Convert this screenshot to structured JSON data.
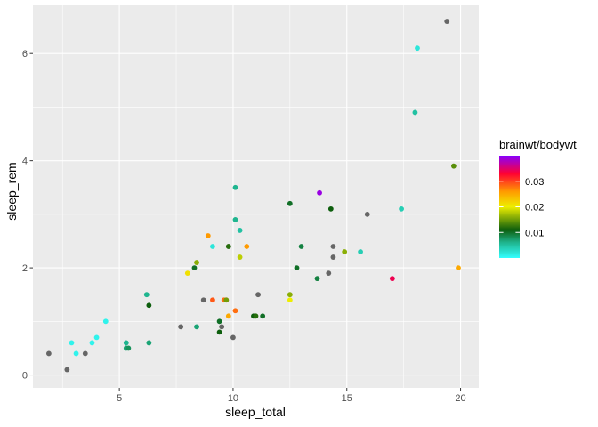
{
  "chart_data": {
    "type": "scatter",
    "xlabel": "sleep_total",
    "ylabel": "sleep_rem",
    "xlim": [
      1.2,
      20.8
    ],
    "ylim": [
      -0.24,
      6.9
    ],
    "x_ticks": [
      {
        "value": 5,
        "label": "5"
      },
      {
        "value": 10,
        "label": "10"
      },
      {
        "value": 15,
        "label": "15"
      },
      {
        "value": 20,
        "label": "20"
      }
    ],
    "y_ticks": [
      {
        "value": 0,
        "label": "0"
      },
      {
        "value": 2,
        "label": "2"
      },
      {
        "value": 4,
        "label": "4"
      },
      {
        "value": 6,
        "label": "6"
      }
    ],
    "grid": true,
    "legend": {
      "title": "brainwt/bodywt",
      "placement": "right",
      "range": [
        0.0,
        0.04
      ],
      "stops": [
        {
          "value": 0.0,
          "color": "#33ffff"
        },
        {
          "value": 0.006,
          "color": "#1fb58f"
        },
        {
          "value": 0.011,
          "color": "#0d5e0d"
        },
        {
          "value": 0.02,
          "color": "#eeee00"
        },
        {
          "value": 0.026,
          "color": "#ff9a00"
        },
        {
          "value": 0.033,
          "color": "#ff0033"
        },
        {
          "value": 0.04,
          "color": "#8800ff"
        }
      ],
      "ticks": [
        {
          "value": 0.01,
          "label": "0.01"
        },
        {
          "value": 0.02,
          "label": "0.02"
        },
        {
          "value": 0.03,
          "label": "0.03"
        }
      ]
    },
    "na_color": "#666666",
    "points": [
      {
        "x": 1.9,
        "y": 0.4,
        "c": null
      },
      {
        "x": 2.7,
        "y": 0.1,
        "c": null
      },
      {
        "x": 2.9,
        "y": 0.6,
        "c": 0.001
      },
      {
        "x": 3.1,
        "y": 0.4,
        "c": 0.001
      },
      {
        "x": 3.5,
        "y": 0.4,
        "c": null
      },
      {
        "x": 3.8,
        "y": 0.6,
        "c": 0.001
      },
      {
        "x": 4.0,
        "y": 0.7,
        "c": 0.001
      },
      {
        "x": 4.4,
        "y": 1.0,
        "c": 0.001
      },
      {
        "x": 5.3,
        "y": 0.6,
        "c": 0.006
      },
      {
        "x": 5.3,
        "y": 0.5,
        "c": 0.007
      },
      {
        "x": 5.4,
        "y": 0.5,
        "c": 0.008
      },
      {
        "x": 6.2,
        "y": 1.5,
        "c": 0.006
      },
      {
        "x": 6.3,
        "y": 1.3,
        "c": 0.011
      },
      {
        "x": 6.3,
        "y": 0.6,
        "c": 0.007
      },
      {
        "x": 7.7,
        "y": 0.9,
        "c": null
      },
      {
        "x": 8.0,
        "y": 1.9,
        "c": 0.021
      },
      {
        "x": 8.3,
        "y": 2.0,
        "c": 0.01
      },
      {
        "x": 8.4,
        "y": 2.1,
        "c": 0.016
      },
      {
        "x": 8.4,
        "y": 0.9,
        "c": 0.007
      },
      {
        "x": 8.7,
        "y": 1.4,
        "c": null
      },
      {
        "x": 8.9,
        "y": 2.6,
        "c": 0.026
      },
      {
        "x": 9.1,
        "y": 2.4,
        "c": 0.002
      },
      {
        "x": 9.1,
        "y": 1.4,
        "c": 0.029
      },
      {
        "x": 9.4,
        "y": 1.0,
        "c": 0.01
      },
      {
        "x": 9.4,
        "y": 0.8,
        "c": 0.011
      },
      {
        "x": 9.5,
        "y": 0.9,
        "c": null
      },
      {
        "x": 9.6,
        "y": 1.4,
        "c": 0.028
      },
      {
        "x": 9.7,
        "y": 1.4,
        "c": 0.03
      },
      {
        "x": 9.7,
        "y": 1.4,
        "c": 0.015
      },
      {
        "x": 9.8,
        "y": 2.4,
        "c": null
      },
      {
        "x": 9.8,
        "y": 2.4,
        "c": 0.012
      },
      {
        "x": 9.8,
        "y": 1.1,
        "c": 0.025
      },
      {
        "x": 10.0,
        "y": 0.7,
        "c": null
      },
      {
        "x": 10.1,
        "y": 3.5,
        "c": 0.006
      },
      {
        "x": 10.1,
        "y": 2.9,
        "c": 0.006
      },
      {
        "x": 10.1,
        "y": 1.2,
        "c": 0.028
      },
      {
        "x": 10.3,
        "y": 2.7,
        "c": 0.005
      },
      {
        "x": 10.3,
        "y": 2.2,
        "c": 0.018
      },
      {
        "x": 10.6,
        "y": 2.4,
        "c": 0.026
      },
      {
        "x": 10.9,
        "y": 1.1,
        "c": 0.011
      },
      {
        "x": 11.0,
        "y": 1.1,
        "c": 0.012
      },
      {
        "x": 11.1,
        "y": 1.5,
        "c": null
      },
      {
        "x": 11.3,
        "y": 1.1,
        "c": 0.01
      },
      {
        "x": 12.5,
        "y": 3.2,
        "c": 0.01
      },
      {
        "x": 12.5,
        "y": 1.5,
        "c": 0.016
      },
      {
        "x": 12.5,
        "y": 1.4,
        "c": 0.02
      },
      {
        "x": 12.8,
        "y": 2.0,
        "c": 0.01
      },
      {
        "x": 13.0,
        "y": 2.4,
        "c": 0.009
      },
      {
        "x": 13.7,
        "y": 1.8,
        "c": 0.009
      },
      {
        "x": 13.8,
        "y": 3.4,
        "c": 0.039
      },
      {
        "x": 14.2,
        "y": 1.9,
        "c": null
      },
      {
        "x": 14.3,
        "y": 3.1,
        "c": 0.011
      },
      {
        "x": 14.4,
        "y": 2.4,
        "c": null
      },
      {
        "x": 14.4,
        "y": 2.2,
        "c": null
      },
      {
        "x": 14.9,
        "y": 2.3,
        "c": 0.016
      },
      {
        "x": 15.6,
        "y": 2.3,
        "c": 0.004
      },
      {
        "x": 15.9,
        "y": 3.0,
        "c": null
      },
      {
        "x": 17.0,
        "y": 1.8,
        "c": 0.034
      },
      {
        "x": 17.4,
        "y": 3.1,
        "c": 0.004
      },
      {
        "x": 18.0,
        "y": 4.9,
        "c": 0.005
      },
      {
        "x": 18.1,
        "y": 6.1,
        "c": 0.002
      },
      {
        "x": 19.4,
        "y": 6.6,
        "c": null
      },
      {
        "x": 19.7,
        "y": 3.9,
        "c": 0.014
      },
      {
        "x": 19.9,
        "y": 2.0,
        "c": 0.025
      }
    ]
  }
}
